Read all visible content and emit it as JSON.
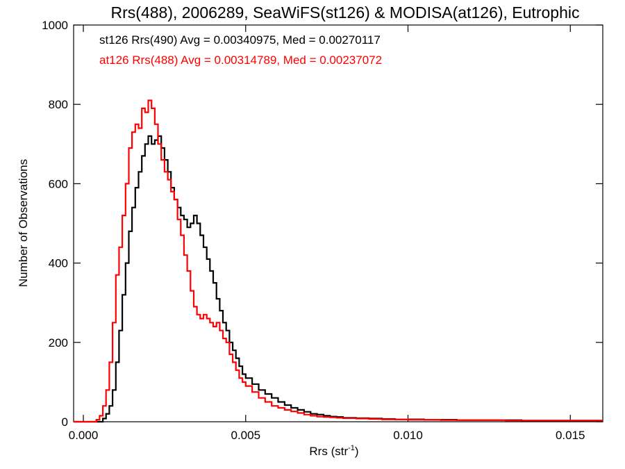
{
  "chart_data": {
    "type": "line",
    "title": "Rrs(488), 2006289, SeaWiFS(st126) & MODISA(at126), Eutrophic",
    "xlabel_base": "Rrs (str",
    "xlabel_sup": "-1",
    "xlabel_end": ")",
    "ylabel": "Number of Observations",
    "xlim": [
      -0.0003,
      0.016
    ],
    "ylim": [
      0,
      1000
    ],
    "xticks": [
      {
        "v": 0.0,
        "label": "0.000"
      },
      {
        "v": 0.005,
        "label": "0.005"
      },
      {
        "v": 0.01,
        "label": "0.010"
      },
      {
        "v": 0.015,
        "label": "0.015"
      }
    ],
    "yticks": [
      {
        "v": 0,
        "label": "0"
      },
      {
        "v": 200,
        "label": "200"
      },
      {
        "v": 400,
        "label": "400"
      },
      {
        "v": 600,
        "label": "600"
      },
      {
        "v": 800,
        "label": "800"
      },
      {
        "v": 1000,
        "label": "1000"
      }
    ],
    "series": [
      {
        "name": "st126 Rrs(490) Avg = 0.00340975, Med = 0.00270117",
        "color": "#000000",
        "x": [
          -0.0003,
          0.0004,
          0.0005,
          0.0006,
          0.0007,
          0.0008,
          0.0009,
          0.001,
          0.0011,
          0.0012,
          0.0013,
          0.0014,
          0.0015,
          0.0016,
          0.0017,
          0.0018,
          0.0019,
          0.002,
          0.0021,
          0.0022,
          0.0023,
          0.0024,
          0.0025,
          0.0026,
          0.0027,
          0.0028,
          0.0029,
          0.003,
          0.0031,
          0.0032,
          0.0033,
          0.0034,
          0.0035,
          0.0036,
          0.0037,
          0.0038,
          0.0039,
          0.004,
          0.0041,
          0.0042,
          0.0043,
          0.0044,
          0.0045,
          0.0046,
          0.0047,
          0.0048,
          0.0049,
          0.005,
          0.0052,
          0.0054,
          0.0056,
          0.0058,
          0.006,
          0.0062,
          0.0064,
          0.0066,
          0.0068,
          0.007,
          0.0072,
          0.0074,
          0.0076,
          0.0078,
          0.008,
          0.0084,
          0.0088,
          0.0092,
          0.0096,
          0.01,
          0.0105,
          0.011,
          0.0115,
          0.012,
          0.0125,
          0.013,
          0.0135,
          0.014,
          0.0145,
          0.015,
          0.0155,
          0.016
        ],
        "y": [
          0,
          0,
          0,
          8,
          20,
          40,
          80,
          150,
          230,
          320,
          400,
          480,
          540,
          590,
          630,
          670,
          700,
          720,
          700,
          710,
          720,
          690,
          660,
          630,
          590,
          560,
          540,
          520,
          510,
          490,
          500,
          520,
          500,
          470,
          440,
          410,
          380,
          350,
          310,
          280,
          250,
          230,
          200,
          180,
          160,
          140,
          120,
          110,
          95,
          80,
          70,
          60,
          50,
          42,
          35,
          30,
          25,
          20,
          18,
          15,
          13,
          12,
          10,
          9,
          8,
          7,
          6,
          6,
          5,
          5,
          4,
          4,
          4,
          4,
          3,
          3,
          3,
          3,
          3,
          3
        ]
      },
      {
        "name": "at126 Rrs(488) Avg = 0.00314789, Med = 0.00237072",
        "color": "#ff0000",
        "x": [
          -0.0003,
          0.0003,
          0.0004,
          0.0005,
          0.0006,
          0.0007,
          0.0008,
          0.0009,
          0.001,
          0.0011,
          0.0012,
          0.0013,
          0.0014,
          0.0015,
          0.0016,
          0.0017,
          0.0018,
          0.0019,
          0.002,
          0.0021,
          0.0022,
          0.0023,
          0.0024,
          0.0025,
          0.0026,
          0.0027,
          0.0028,
          0.0029,
          0.003,
          0.0031,
          0.0032,
          0.0033,
          0.0034,
          0.0035,
          0.0036,
          0.0037,
          0.0038,
          0.0039,
          0.004,
          0.0041,
          0.0042,
          0.0043,
          0.0044,
          0.0045,
          0.0046,
          0.0047,
          0.0048,
          0.0049,
          0.005,
          0.0052,
          0.0054,
          0.0056,
          0.0058,
          0.006,
          0.0062,
          0.0064,
          0.0066,
          0.0068,
          0.007,
          0.0072,
          0.0074,
          0.0076,
          0.0078,
          0.008,
          0.0084,
          0.0088,
          0.0092,
          0.0096,
          0.01,
          0.0105,
          0.011,
          0.0115,
          0.012,
          0.0125,
          0.013,
          0.0135,
          0.014,
          0.0145,
          0.015,
          0.0155,
          0.016
        ],
        "y": [
          0,
          0,
          5,
          15,
          40,
          80,
          150,
          250,
          370,
          440,
          520,
          600,
          690,
          730,
          750,
          740,
          790,
          780,
          810,
          790,
          750,
          700,
          660,
          630,
          610,
          580,
          560,
          510,
          470,
          420,
          380,
          330,
          290,
          270,
          260,
          270,
          260,
          250,
          240,
          250,
          230,
          210,
          200,
          170,
          150,
          130,
          110,
          100,
          90,
          75,
          60,
          50,
          40,
          35,
          30,
          26,
          22,
          18,
          15,
          13,
          12,
          11,
          10,
          9,
          8,
          7,
          6,
          6,
          5,
          5,
          4,
          4,
          4,
          4,
          3,
          3,
          3,
          3,
          3,
          3,
          3
        ]
      }
    ]
  }
}
